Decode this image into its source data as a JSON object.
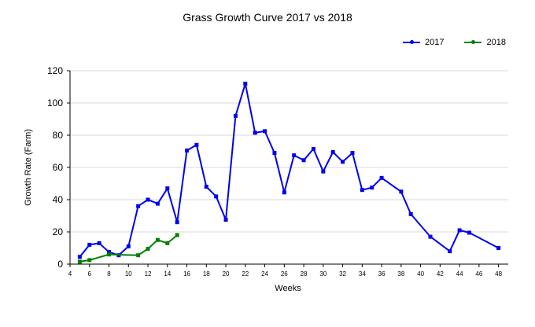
{
  "chart_data": {
    "type": "line",
    "title": "Grass Growth Curve 2017 vs 2018",
    "xlabel": "Weeks",
    "ylabel": "Growth Rate (Farm)",
    "xlim": [
      4,
      49
    ],
    "ylim": [
      0,
      120
    ],
    "x_ticks": [
      4,
      6,
      8,
      10,
      12,
      14,
      16,
      18,
      20,
      22,
      24,
      26,
      28,
      30,
      32,
      34,
      36,
      38,
      40,
      42,
      44,
      46,
      48
    ],
    "y_ticks": [
      0,
      20,
      40,
      60,
      80,
      100,
      120
    ],
    "grid": "horizontal",
    "legend": "top-right",
    "series": [
      {
        "name": "2017",
        "color": "#0000ee",
        "x": [
          5,
          6,
          7,
          8,
          9,
          10,
          11,
          12,
          13,
          14,
          15,
          16,
          17,
          18,
          19,
          20,
          21,
          22,
          23,
          24,
          25,
          26,
          27,
          28,
          29,
          30,
          31,
          32,
          33,
          34,
          35,
          36,
          38,
          39,
          41,
          43,
          44,
          45,
          48
        ],
        "y": [
          4.5,
          12,
          13,
          7.5,
          5.5,
          11,
          36,
          40,
          37.5,
          47,
          26,
          70.5,
          74,
          48,
          42,
          27.5,
          92,
          112,
          81.5,
          82.5,
          69,
          44.5,
          67.5,
          64.5,
          71.5,
          57.5,
          69.5,
          63.5,
          69,
          46,
          47.5,
          53.5,
          45,
          31,
          17,
          8,
          21,
          19.5,
          10
        ]
      },
      {
        "name": "2018",
        "color": "#008000",
        "x": [
          5,
          6,
          8,
          11,
          12,
          13,
          14,
          15
        ],
        "y": [
          1.5,
          2.5,
          6,
          5.5,
          9.5,
          15,
          13,
          18
        ]
      }
    ]
  }
}
